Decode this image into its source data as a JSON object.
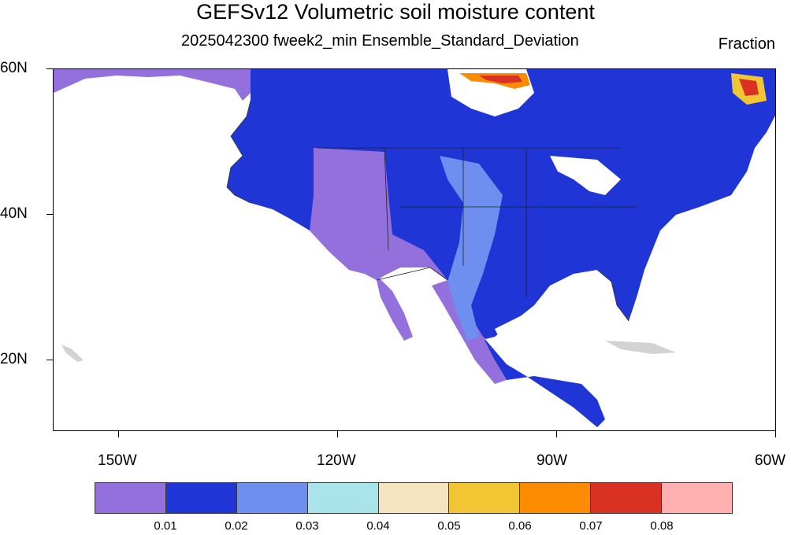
{
  "title": "GEFSv12 Volumetric soil moisture content",
  "subtitle": "2025042300 fweek2_min Ensemble_Standard_Deviation",
  "units": "Fraction",
  "map": {
    "lat_labels": [
      "60N",
      "40N",
      "20N"
    ],
    "lon_labels": [
      "150W",
      "120W",
      "90W",
      "60W"
    ],
    "land_color": "#9370db",
    "missing_color": "#d3d3d3"
  },
  "colorbar": {
    "colors": [
      "#9370db",
      "#1f35d6",
      "#6e8ff0",
      "#a8e4ea",
      "#f4e4c0",
      "#f2c534",
      "#fb8c00",
      "#d93224",
      "#ffb0b0"
    ],
    "labels": [
      "0.01",
      "0.02",
      "0.03",
      "0.04",
      "0.05",
      "0.06",
      "0.07",
      "0.08"
    ]
  }
}
